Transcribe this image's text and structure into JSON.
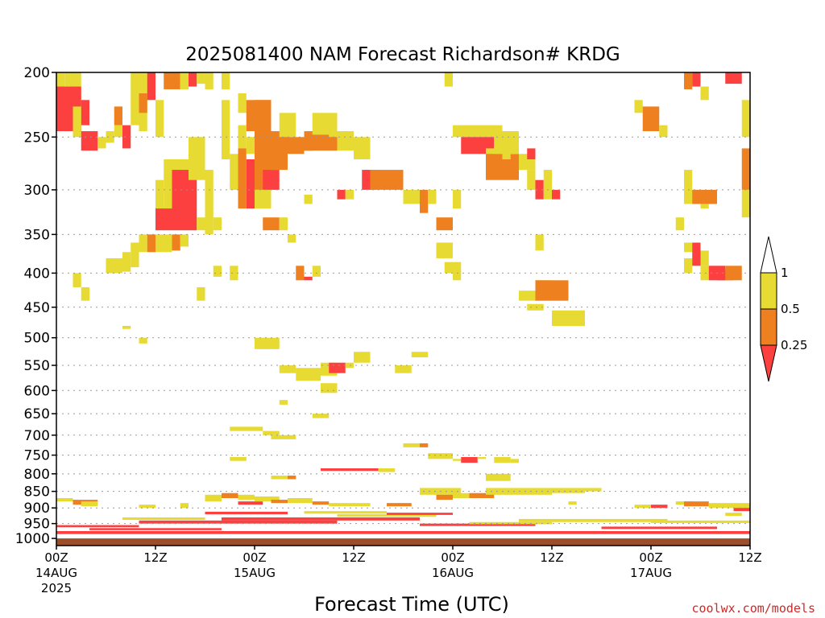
{
  "chart_data": {
    "type": "heatmap",
    "title": "2025081400 NAM Forecast Richardson# KRDG",
    "xlabel": "Forecast Time (UTC)",
    "credit": "coolwx.com/models",
    "x_ticks": [
      {
        "hour": 0,
        "line1": "00Z",
        "line2": "14AUG",
        "line3": "2025"
      },
      {
        "hour": 12,
        "line1": "12Z",
        "line2": "",
        "line3": ""
      },
      {
        "hour": 24,
        "line1": "00Z",
        "line2": "15AUG",
        "line3": ""
      },
      {
        "hour": 36,
        "line1": "12Z",
        "line2": "",
        "line3": ""
      },
      {
        "hour": 48,
        "line1": "00Z",
        "line2": "16AUG",
        "line3": ""
      },
      {
        "hour": 60,
        "line1": "12Z",
        "line2": "",
        "line3": ""
      },
      {
        "hour": 72,
        "line1": "00Z",
        "line2": "17AUG",
        "line3": ""
      },
      {
        "hour": 84,
        "line1": "12Z",
        "line2": "",
        "line3": ""
      }
    ],
    "xlim": [
      0,
      84
    ],
    "y_scale": "log",
    "ylim": [
      1025,
      200
    ],
    "y_ticks": [
      200,
      250,
      300,
      350,
      400,
      450,
      500,
      550,
      600,
      650,
      700,
      750,
      800,
      850,
      900,
      950,
      1000
    ],
    "grid": true,
    "surface_level": 1000,
    "colorbar": {
      "placement": "right",
      "labels": [
        "1",
        "0.5",
        "0.25"
      ],
      "bins": [
        {
          "range": "0.5-1",
          "color": "#e6da33"
        },
        {
          "range": "0.25-0.5",
          "color": "#ee8020"
        },
        {
          "range": "<0.25",
          "color": "#fc4040"
        }
      ]
    },
    "colors": {
      "c1": "#e6da33",
      "c2": "#ee8020",
      "c3": "#fc4040",
      "ground": "#9a4f2a",
      "credit": "#d02828"
    },
    "cells": [
      [
        0,
        1,
        200,
        240,
        1
      ],
      [
        1,
        2,
        200,
        210,
        1
      ],
      [
        2,
        3,
        200,
        250,
        1
      ],
      [
        0,
        3,
        210,
        245,
        3
      ],
      [
        3,
        4,
        220,
        240,
        3
      ],
      [
        2,
        3,
        225,
        245,
        1
      ],
      [
        3,
        5,
        245,
        262,
        3
      ],
      [
        5,
        6,
        250,
        260,
        1
      ],
      [
        6,
        7,
        245,
        255,
        1
      ],
      [
        7,
        8,
        225,
        240,
        2
      ],
      [
        7,
        8,
        240,
        250,
        1
      ],
      [
        8,
        9,
        240,
        260,
        3
      ],
      [
        9,
        10,
        215,
        240,
        1
      ],
      [
        10,
        11,
        200,
        245,
        1
      ],
      [
        9,
        11,
        200,
        215,
        1
      ],
      [
        10,
        11,
        215,
        230,
        2
      ],
      [
        11,
        12,
        200,
        220,
        3
      ],
      [
        12,
        13,
        220,
        250,
        1
      ],
      [
        13,
        15,
        200,
        212,
        2
      ],
      [
        15,
        16,
        200,
        212,
        1
      ],
      [
        16,
        17,
        200,
        210,
        3
      ],
      [
        17,
        18,
        200,
        208,
        1
      ],
      [
        18,
        19,
        200,
        212,
        1
      ],
      [
        20,
        21,
        200,
        212,
        1
      ],
      [
        22,
        23,
        215,
        230,
        1
      ],
      [
        23,
        26,
        220,
        245,
        2
      ],
      [
        24,
        25,
        235,
        250,
        1
      ],
      [
        22,
        23,
        240,
        260,
        1
      ],
      [
        23,
        24,
        250,
        265,
        1
      ],
      [
        6,
        8,
        380,
        400,
        1
      ],
      [
        8,
        9,
        372,
        398,
        1
      ],
      [
        9,
        10,
        360,
        392,
        1
      ],
      [
        10,
        11,
        350,
        372,
        1
      ],
      [
        11,
        12,
        350,
        372,
        2
      ],
      [
        12,
        14,
        350,
        372,
        1
      ],
      [
        14,
        15,
        350,
        370,
        2
      ],
      [
        15,
        16,
        350,
        365,
        1
      ],
      [
        13,
        16,
        270,
        330,
        1
      ],
      [
        12,
        13,
        290,
        330,
        1
      ],
      [
        12,
        14,
        320,
        345,
        3
      ],
      [
        14,
        17,
        280,
        345,
        3
      ],
      [
        15,
        16,
        290,
        320,
        3
      ],
      [
        17,
        18,
        330,
        345,
        1
      ],
      [
        16,
        18,
        250,
        290,
        1
      ],
      [
        18,
        19,
        280,
        350,
        1
      ],
      [
        19,
        20,
        330,
        345,
        1
      ],
      [
        20,
        21,
        220,
        270,
        1
      ],
      [
        21,
        22,
        265,
        300,
        1
      ],
      [
        22,
        23,
        260,
        320,
        2
      ],
      [
        23,
        24,
        270,
        320,
        3
      ],
      [
        24,
        26,
        220,
        300,
        2
      ],
      [
        25,
        27,
        280,
        300,
        3
      ],
      [
        26,
        28,
        245,
        280,
        2
      ],
      [
        28,
        30,
        250,
        265,
        2
      ],
      [
        30,
        31,
        255,
        262,
        3
      ],
      [
        30,
        34,
        245,
        262,
        2
      ],
      [
        31,
        34,
        230,
        248,
        1
      ],
      [
        33,
        34,
        235,
        250,
        1
      ],
      [
        27,
        29,
        230,
        250,
        1
      ],
      [
        24,
        26,
        300,
        320,
        1
      ],
      [
        25,
        27,
        330,
        345,
        2
      ],
      [
        27,
        28,
        330,
        345,
        1
      ],
      [
        28,
        29,
        350,
        360,
        1
      ],
      [
        29,
        30,
        390,
        410,
        2
      ],
      [
        30,
        31,
        405,
        410,
        3
      ],
      [
        31,
        32,
        390,
        405,
        1
      ],
      [
        30,
        31,
        305,
        315,
        1
      ],
      [
        34,
        35,
        300,
        310,
        3
      ],
      [
        35,
        36,
        300,
        310,
        1
      ],
      [
        34,
        36,
        245,
        262,
        1
      ],
      [
        36,
        38,
        250,
        270,
        1
      ],
      [
        37,
        38,
        280,
        300,
        3
      ],
      [
        38,
        39,
        280,
        300,
        1
      ],
      [
        38,
        42,
        280,
        300,
        2
      ],
      [
        42,
        44,
        300,
        315,
        1
      ],
      [
        44,
        45,
        300,
        325,
        2
      ],
      [
        45,
        46,
        300,
        315,
        1
      ],
      [
        46,
        48,
        330,
        345,
        2
      ],
      [
        46,
        48,
        360,
        380,
        1
      ],
      [
        47,
        48,
        200,
        210,
        1
      ],
      [
        48,
        49,
        300,
        320,
        1
      ],
      [
        47,
        49,
        385,
        400,
        1
      ],
      [
        48,
        49,
        395,
        410,
        1
      ],
      [
        48,
        54,
        240,
        250,
        1
      ],
      [
        49,
        53,
        250,
        265,
        3
      ],
      [
        52,
        54,
        260,
        272,
        1
      ],
      [
        52,
        56,
        265,
        290,
        2
      ],
      [
        53,
        56,
        245,
        265,
        1
      ],
      [
        54,
        55,
        250,
        270,
        1
      ],
      [
        56,
        58,
        265,
        280,
        1
      ],
      [
        57,
        58,
        260,
        270,
        3
      ],
      [
        57,
        58,
        280,
        300,
        1
      ],
      [
        58,
        59,
        290,
        310,
        3
      ],
      [
        59,
        60,
        280,
        310,
        1
      ],
      [
        58,
        59,
        350,
        370,
        1
      ],
      [
        60,
        61,
        300,
        310,
        3
      ],
      [
        70,
        71,
        220,
        230,
        1
      ],
      [
        71,
        73,
        225,
        245,
        2
      ],
      [
        73,
        74,
        240,
        250,
        1
      ],
      [
        76,
        77,
        280,
        300,
        1
      ],
      [
        76,
        78,
        300,
        315,
        1
      ],
      [
        77,
        80,
        300,
        315,
        2
      ],
      [
        78,
        79,
        315,
        320,
        1
      ],
      [
        75,
        76,
        330,
        345,
        1
      ],
      [
        76,
        77,
        360,
        372,
        1
      ],
      [
        76,
        77,
        380,
        400,
        1
      ],
      [
        77,
        78,
        360,
        390,
        3
      ],
      [
        78,
        79,
        370,
        390,
        1
      ],
      [
        78,
        79,
        390,
        410,
        1
      ],
      [
        79,
        81,
        390,
        410,
        3
      ],
      [
        80,
        82,
        395,
        410,
        3
      ],
      [
        81,
        83,
        390,
        410,
        2
      ],
      [
        76,
        77,
        200,
        212,
        2
      ],
      [
        77,
        78,
        200,
        210,
        3
      ],
      [
        78,
        79,
        210,
        220,
        1
      ],
      [
        81,
        83,
        200,
        208,
        3
      ],
      [
        83,
        84,
        220,
        250,
        1
      ],
      [
        83,
        84,
        260,
        300,
        2
      ],
      [
        84,
        84.3,
        270,
        300,
        3
      ],
      [
        83,
        84,
        300,
        330,
        1
      ],
      [
        2,
        3,
        400,
        420,
        1
      ],
      [
        3,
        4,
        420,
        440,
        1
      ],
      [
        8,
        9,
        480,
        485,
        1
      ],
      [
        10,
        11,
        500,
        510,
        1
      ],
      [
        17,
        18,
        420,
        440,
        1
      ],
      [
        19,
        20,
        390,
        405,
        1
      ],
      [
        21,
        22,
        390,
        410,
        1
      ],
      [
        24,
        27,
        500,
        520,
        1
      ],
      [
        27,
        29,
        550,
        565,
        1
      ],
      [
        29,
        32,
        555,
        580,
        1
      ],
      [
        32,
        34,
        545,
        570,
        1
      ],
      [
        33,
        35,
        545,
        565,
        3
      ],
      [
        35,
        36,
        545,
        555,
        1
      ],
      [
        36,
        38,
        525,
        545,
        1
      ],
      [
        32,
        34,
        585,
        605,
        1
      ],
      [
        41,
        43,
        550,
        565,
        1
      ],
      [
        43,
        45,
        525,
        535,
        1
      ],
      [
        27,
        28,
        620,
        630,
        1
      ],
      [
        31,
        33,
        650,
        660,
        1
      ],
      [
        21,
        25,
        680,
        690,
        1
      ],
      [
        25,
        27,
        690,
        700,
        1
      ],
      [
        26,
        29,
        700,
        710,
        1
      ],
      [
        21,
        23,
        755,
        765,
        1
      ],
      [
        42,
        44,
        720,
        730,
        1
      ],
      [
        44,
        45,
        720,
        730,
        2
      ],
      [
        45,
        48,
        745,
        760,
        1
      ],
      [
        48,
        49,
        760,
        765,
        1
      ],
      [
        49,
        51,
        755,
        770,
        3
      ],
      [
        51,
        52,
        755,
        760,
        1
      ],
      [
        53,
        55,
        755,
        770,
        1
      ],
      [
        55,
        56,
        760,
        770,
        1
      ],
      [
        58,
        60,
        410,
        420,
        1
      ],
      [
        58,
        62,
        410,
        440,
        2
      ],
      [
        56,
        58,
        425,
        440,
        1
      ],
      [
        57,
        59,
        445,
        455,
        1
      ],
      [
        60,
        62,
        455,
        480,
        1
      ],
      [
        62,
        64,
        455,
        480,
        1
      ],
      [
        32,
        39,
        785,
        792,
        3
      ],
      [
        39,
        41,
        785,
        795,
        1
      ],
      [
        0,
        2,
        870,
        880,
        1
      ],
      [
        2,
        5,
        875,
        890,
        2
      ],
      [
        3,
        5,
        880,
        895,
        1
      ],
      [
        10,
        12,
        890,
        900,
        1
      ],
      [
        15,
        16,
        885,
        900,
        1
      ],
      [
        18,
        20,
        860,
        880,
        1
      ],
      [
        20,
        22,
        855,
        870,
        2
      ],
      [
        22,
        24,
        860,
        875,
        1
      ],
      [
        22,
        25,
        880,
        890,
        3
      ],
      [
        24,
        27,
        865,
        880,
        1
      ],
      [
        26,
        28,
        875,
        885,
        2
      ],
      [
        28,
        31,
        870,
        885,
        1
      ],
      [
        31,
        33,
        880,
        890,
        2
      ],
      [
        33,
        36,
        885,
        895,
        1
      ],
      [
        36,
        38,
        885,
        895,
        1
      ],
      [
        40,
        43,
        885,
        895,
        2
      ],
      [
        44,
        49,
        840,
        860,
        1
      ],
      [
        46,
        48,
        860,
        875,
        2
      ],
      [
        48,
        50,
        855,
        870,
        1
      ],
      [
        50,
        53,
        855,
        870,
        2
      ],
      [
        52,
        60,
        840,
        860,
        1
      ],
      [
        60,
        64,
        840,
        855,
        1
      ],
      [
        64,
        66,
        840,
        850,
        1
      ],
      [
        52,
        55,
        800,
        820,
        1
      ],
      [
        26,
        29,
        805,
        815,
        1
      ],
      [
        28,
        29,
        805,
        815,
        2
      ],
      [
        62,
        63,
        880,
        890,
        1
      ],
      [
        70,
        72,
        890,
        900,
        1
      ],
      [
        72,
        74,
        890,
        900,
        3
      ],
      [
        75,
        77,
        880,
        890,
        1
      ],
      [
        76,
        79,
        880,
        895,
        2
      ],
      [
        79,
        84,
        885,
        900,
        1
      ],
      [
        82,
        84,
        900,
        910,
        3
      ],
      [
        81,
        83,
        915,
        925,
        1
      ],
      [
        84,
        84.2,
        900,
        925,
        1
      ],
      [
        0,
        84,
        945,
        1000,
        0
      ]
    ]
  }
}
